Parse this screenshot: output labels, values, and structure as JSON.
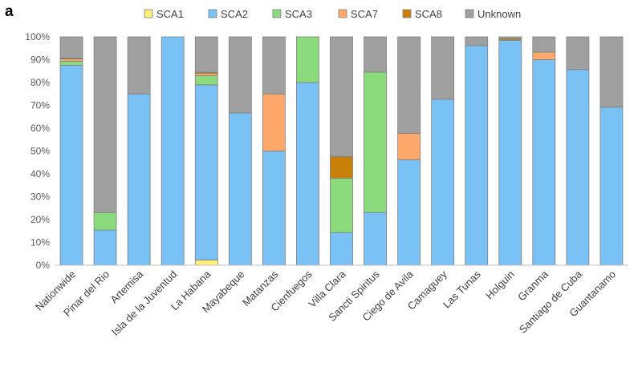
{
  "panel_label": "a",
  "chart_data": {
    "type": "bar",
    "stacked": true,
    "title": "",
    "xlabel": "",
    "ylabel": "",
    "ylim": [
      0,
      100
    ],
    "yticks": [
      "0%",
      "10%",
      "20%",
      "30%",
      "40%",
      "50%",
      "60%",
      "70%",
      "80%",
      "90%",
      "100%"
    ],
    "legend_position": "top",
    "categories": [
      "Nationwide",
      "Pinar del Rio",
      "Artemisa",
      "Isla de la Juventud",
      "La Habana",
      "Mayabeque",
      "Matanzas",
      "Cienfuegos",
      "Villa  Clara",
      "Sancti  Spiritus",
      "Ciego de Avila",
      "Camaguey",
      "Las Tunas",
      "Holguin",
      "Granma",
      "Santiago de Cuba",
      "Guantanamo"
    ],
    "series": [
      {
        "name": "SCA1",
        "color": "#FFEE77",
        "values": [
          0,
          0,
          0,
          0,
          2.3,
          0,
          0,
          0,
          0,
          0,
          0,
          0,
          0,
          0,
          0,
          0,
          0
        ]
      },
      {
        "name": "SCA2",
        "color": "#7AC1F5",
        "values": [
          87.6,
          15.4,
          75,
          100,
          76.7,
          66.7,
          50,
          80,
          14.3,
          23.1,
          46.2,
          72.7,
          96.2,
          98.5,
          90,
          85.7,
          69.2
        ]
      },
      {
        "name": "SCA3",
        "color": "#8BDB7C",
        "values": [
          1.7,
          7.7,
          0,
          0,
          4,
          0,
          0,
          20,
          23.8,
          61.5,
          0,
          0,
          0,
          0,
          0,
          0,
          0
        ]
      },
      {
        "name": "SCA7",
        "color": "#FFA86B",
        "values": [
          1,
          0,
          0,
          0,
          1,
          0,
          25,
          0,
          0,
          0,
          11.5,
          0,
          0,
          0,
          3.3,
          0,
          0
        ]
      },
      {
        "name": "SCA8",
        "color": "#C8800A",
        "values": [
          0.4,
          0,
          0,
          0,
          0.5,
          0,
          0,
          0,
          9.5,
          0,
          0,
          0,
          0,
          0.7,
          0,
          0,
          0
        ]
      },
      {
        "name": "Unknown",
        "color": "#A0A0A0",
        "values": [
          9.3,
          76.9,
          25,
          0,
          15.5,
          33.3,
          25,
          0,
          52.4,
          15.4,
          42.3,
          27.3,
          3.8,
          0.8,
          6.7,
          14.3,
          30.8
        ]
      }
    ]
  }
}
